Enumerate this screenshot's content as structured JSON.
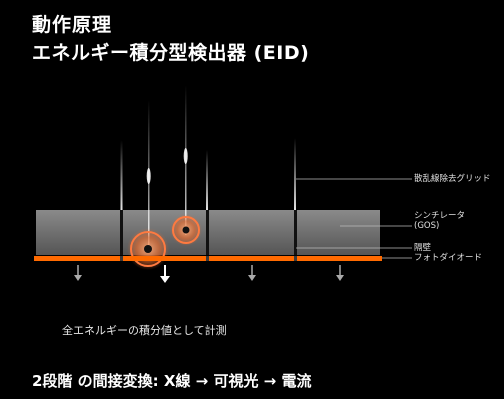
{
  "title": {
    "line1": "動作原理",
    "line2": "エネルギー積分型検出器 (EID)"
  },
  "labels": {
    "grid": "散乱線除去グリッド",
    "scintillator_1": "シンチレータ",
    "scintillator_2": "(GOS)",
    "septum": "隔壁",
    "photodiode": "フォトダイオード"
  },
  "caption": "全エネルギーの積分値として計測",
  "footer": "2段階 の間接変換: X線 → 可視光 → 電流",
  "colors": {
    "background": "#000000",
    "photodiode": "#ff6a00",
    "scintillator": "#808080",
    "glow": "#ff8040"
  }
}
